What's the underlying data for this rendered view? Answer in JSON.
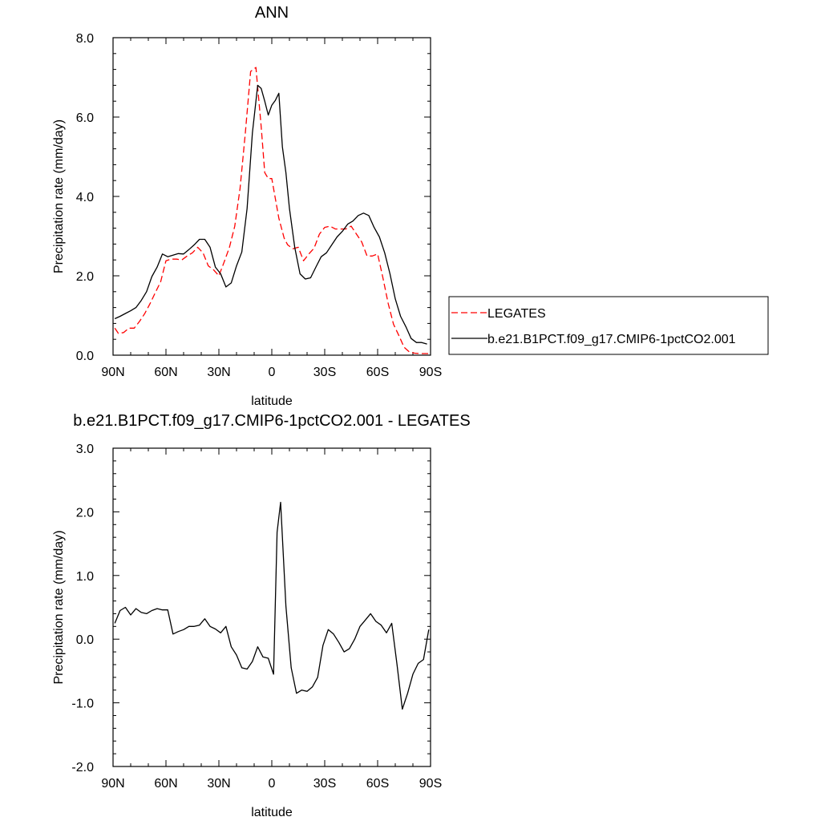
{
  "chart_data": [
    {
      "type": "line",
      "title": "ANN",
      "xlabel": "latitude",
      "ylabel": "Precipitation rate (mm/day)",
      "xlim": [
        -90,
        90
      ],
      "ylim": [
        0,
        8
      ],
      "xticks": [
        {
          "value": -90,
          "label": "90N"
        },
        {
          "value": -60,
          "label": "60N"
        },
        {
          "value": -30,
          "label": "30N"
        },
        {
          "value": 0,
          "label": "0"
        },
        {
          "value": 30,
          "label": "30S"
        },
        {
          "value": 60,
          "label": "60S"
        },
        {
          "value": 90,
          "label": "90S"
        }
      ],
      "yticks": [
        {
          "value": 0,
          "label": "0.0"
        },
        {
          "value": 2,
          "label": "2.0"
        },
        {
          "value": 4,
          "label": "4.0"
        },
        {
          "value": 6,
          "label": "6.0"
        },
        {
          "value": 8,
          "label": "8.0"
        }
      ],
      "legend": "right",
      "series": [
        {
          "name": "LEGATES",
          "color": "#ff0000",
          "dash": "dashed",
          "x": [
            -89,
            -87,
            -84,
            -81,
            -78,
            -75,
            -72,
            -69,
            -66,
            -63,
            -60,
            -57,
            -54,
            -51,
            -48,
            -45,
            -42,
            -39,
            -36,
            -33,
            -30,
            -27,
            -24,
            -21,
            -18,
            -15,
            -12,
            -9,
            -6,
            -4,
            -2,
            0,
            2,
            4,
            7,
            9,
            12,
            15,
            18,
            21,
            24,
            27,
            30,
            33,
            36,
            39,
            42,
            45,
            48,
            51,
            54,
            57,
            60,
            63,
            66,
            69,
            72,
            75,
            78,
            81,
            84,
            87,
            89
          ],
          "y": [
            0.68,
            0.55,
            0.57,
            0.68,
            0.68,
            0.85,
            1.05,
            1.3,
            1.58,
            1.85,
            2.38,
            2.42,
            2.42,
            2.4,
            2.5,
            2.58,
            2.72,
            2.58,
            2.25,
            2.15,
            2.0,
            2.35,
            2.72,
            3.25,
            4.2,
            5.6,
            7.15,
            7.25,
            5.75,
            4.6,
            4.45,
            4.45,
            3.95,
            3.45,
            2.95,
            2.78,
            2.68,
            2.72,
            2.38,
            2.55,
            2.7,
            3.05,
            3.22,
            3.25,
            3.18,
            3.18,
            3.18,
            3.25,
            3.05,
            2.85,
            2.5,
            2.5,
            2.55,
            1.95,
            1.3,
            0.78,
            0.5,
            0.2,
            0.08,
            0.05,
            0.04,
            0.04,
            0.04
          ]
        },
        {
          "name": "b.e21.B1PCT.f09_g17.CMIP6-1pctCO2.001",
          "color": "#000000",
          "dash": "solid",
          "x": [
            -89,
            -86,
            -83,
            -80,
            -77,
            -74,
            -71,
            -68,
            -65,
            -62,
            -59,
            -56,
            -53,
            -50,
            -47,
            -44,
            -41,
            -38,
            -35,
            -32,
            -29,
            -26,
            -23,
            -20,
            -17,
            -14,
            -11,
            -8,
            -6,
            -4,
            -2,
            0,
            2,
            4,
            6,
            8,
            10,
            13,
            16,
            19,
            22,
            25,
            28,
            31,
            34,
            37,
            40,
            43,
            46,
            49,
            52,
            55,
            58,
            61,
            64,
            67,
            70,
            73,
            76,
            79,
            82,
            85,
            88
          ],
          "y": [
            0.92,
            0.98,
            1.05,
            1.12,
            1.2,
            1.38,
            1.6,
            1.98,
            2.22,
            2.55,
            2.48,
            2.52,
            2.56,
            2.55,
            2.66,
            2.78,
            2.92,
            2.92,
            2.72,
            2.22,
            2.05,
            1.72,
            1.82,
            2.25,
            2.6,
            3.7,
            5.6,
            6.8,
            6.72,
            6.4,
            6.05,
            6.3,
            6.42,
            6.6,
            5.25,
            4.6,
            3.7,
            2.72,
            2.05,
            1.92,
            1.95,
            2.22,
            2.48,
            2.58,
            2.78,
            2.98,
            3.12,
            3.3,
            3.38,
            3.52,
            3.58,
            3.52,
            3.22,
            2.98,
            2.58,
            2.05,
            1.42,
            0.98,
            0.72,
            0.42,
            0.32,
            0.32,
            0.28
          ]
        }
      ]
    },
    {
      "type": "line",
      "title": "b.e21.B1PCT.f09_g17.CMIP6-1pctCO2.001 - LEGATES",
      "xlabel": "latitude",
      "ylabel": "Precipitation rate (mm/day)",
      "xlim": [
        -90,
        90
      ],
      "ylim": [
        -2,
        3
      ],
      "xticks": [
        {
          "value": -90,
          "label": "90N"
        },
        {
          "value": -60,
          "label": "60N"
        },
        {
          "value": -30,
          "label": "30N"
        },
        {
          "value": 0,
          "label": "0"
        },
        {
          "value": 30,
          "label": "30S"
        },
        {
          "value": 60,
          "label": "60S"
        },
        {
          "value": 90,
          "label": "90S"
        }
      ],
      "yticks": [
        {
          "value": -2,
          "label": "-2.0"
        },
        {
          "value": -1,
          "label": "-1.0"
        },
        {
          "value": 0,
          "label": "0.0"
        },
        {
          "value": 1,
          "label": "1.0"
        },
        {
          "value": 2,
          "label": "2.0"
        },
        {
          "value": 3,
          "label": "3.0"
        }
      ],
      "series": [
        {
          "color": "#000000",
          "dash": "solid",
          "x": [
            -89,
            -86,
            -83,
            -80,
            -77,
            -74,
            -71,
            -68,
            -65,
            -62,
            -59,
            -56,
            -53,
            -50,
            -47,
            -44,
            -41,
            -38,
            -35,
            -32,
            -29,
            -26,
            -23,
            -20,
            -17,
            -14,
            -11,
            -8,
            -5,
            -2,
            1,
            3,
            5,
            8,
            11,
            14,
            17,
            20,
            23,
            26,
            29,
            32,
            35,
            38,
            41,
            44,
            47,
            50,
            53,
            56,
            59,
            62,
            65,
            68,
            71,
            74,
            77,
            80,
            83,
            86,
            89
          ],
          "y": [
            0.25,
            0.45,
            0.5,
            0.38,
            0.48,
            0.42,
            0.4,
            0.45,
            0.48,
            0.46,
            0.46,
            0.08,
            0.12,
            0.15,
            0.2,
            0.2,
            0.22,
            0.32,
            0.2,
            0.16,
            0.1,
            0.2,
            -0.12,
            -0.25,
            -0.45,
            -0.47,
            -0.35,
            -0.12,
            -0.28,
            -0.3,
            -0.55,
            1.68,
            2.15,
            0.52,
            -0.45,
            -0.85,
            -0.8,
            -0.82,
            -0.75,
            -0.6,
            -0.1,
            0.15,
            0.08,
            -0.05,
            -0.2,
            -0.15,
            0.0,
            0.2,
            0.3,
            0.4,
            0.28,
            0.22,
            0.1,
            0.25,
            -0.4,
            -1.1,
            -0.85,
            -0.55,
            -0.38,
            -0.32,
            0.15
          ]
        }
      ]
    }
  ]
}
